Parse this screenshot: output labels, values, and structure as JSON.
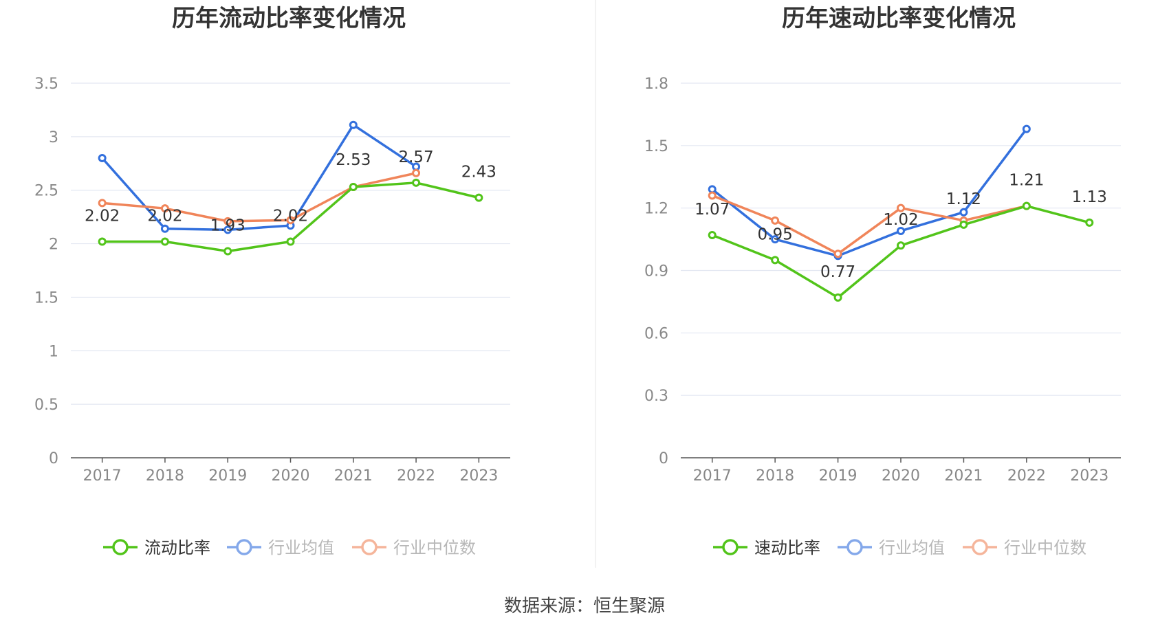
{
  "source_label": "数据来源：恒生聚源",
  "chart_data": [
    {
      "type": "line",
      "title": "历年流动比率变化情况",
      "categories": [
        "2017",
        "2018",
        "2019",
        "2020",
        "2021",
        "2022",
        "2023"
      ],
      "ylim": [
        0,
        3.5
      ],
      "yticks": [
        0,
        0.5,
        1,
        1.5,
        2,
        2.5,
        3,
        3.5
      ],
      "ytick_labels": [
        "0",
        "0.5",
        "1",
        "1.5",
        "2",
        "2.5",
        "3",
        "3.5"
      ],
      "series": [
        {
          "name": "流动比率",
          "color": "#52c41a",
          "values": [
            2.02,
            2.02,
            1.93,
            2.02,
            2.53,
            2.57,
            2.43
          ],
          "labels": [
            "2.02",
            "2.02",
            "1.93",
            "2.02",
            "2.53",
            "2.57",
            "2.43"
          ]
        },
        {
          "name": "行业均值",
          "color": "#3370dd",
          "values": [
            2.8,
            2.14,
            2.13,
            2.17,
            3.11,
            2.72,
            null
          ]
        },
        {
          "name": "行业中位数",
          "color": "#f0855a",
          "values": [
            2.38,
            2.33,
            2.21,
            2.22,
            2.53,
            2.66,
            null
          ]
        }
      ]
    },
    {
      "type": "line",
      "title": "历年速动比率变化情况",
      "categories": [
        "2017",
        "2018",
        "2019",
        "2020",
        "2021",
        "2022",
        "2023"
      ],
      "ylim": [
        0,
        1.8
      ],
      "yticks": [
        0,
        0.3,
        0.6,
        0.9,
        1.2,
        1.5,
        1.8
      ],
      "ytick_labels": [
        "0",
        "0.3",
        "0.6",
        "0.9",
        "1.2",
        "1.5",
        "1.8"
      ],
      "series": [
        {
          "name": "速动比率",
          "color": "#52c41a",
          "values": [
            1.07,
            0.95,
            0.77,
            1.02,
            1.12,
            1.21,
            1.13
          ],
          "labels": [
            "1.07",
            "0.95",
            "0.77",
            "1.02",
            "1.12",
            "1.21",
            "1.13"
          ]
        },
        {
          "name": "行业均值",
          "color": "#3370dd",
          "values": [
            1.29,
            1.05,
            0.97,
            1.09,
            1.18,
            1.58,
            null
          ]
        },
        {
          "name": "行业中位数",
          "color": "#f0855a",
          "values": [
            1.26,
            1.14,
            0.98,
            1.2,
            1.14,
            1.21,
            null
          ]
        }
      ]
    }
  ]
}
